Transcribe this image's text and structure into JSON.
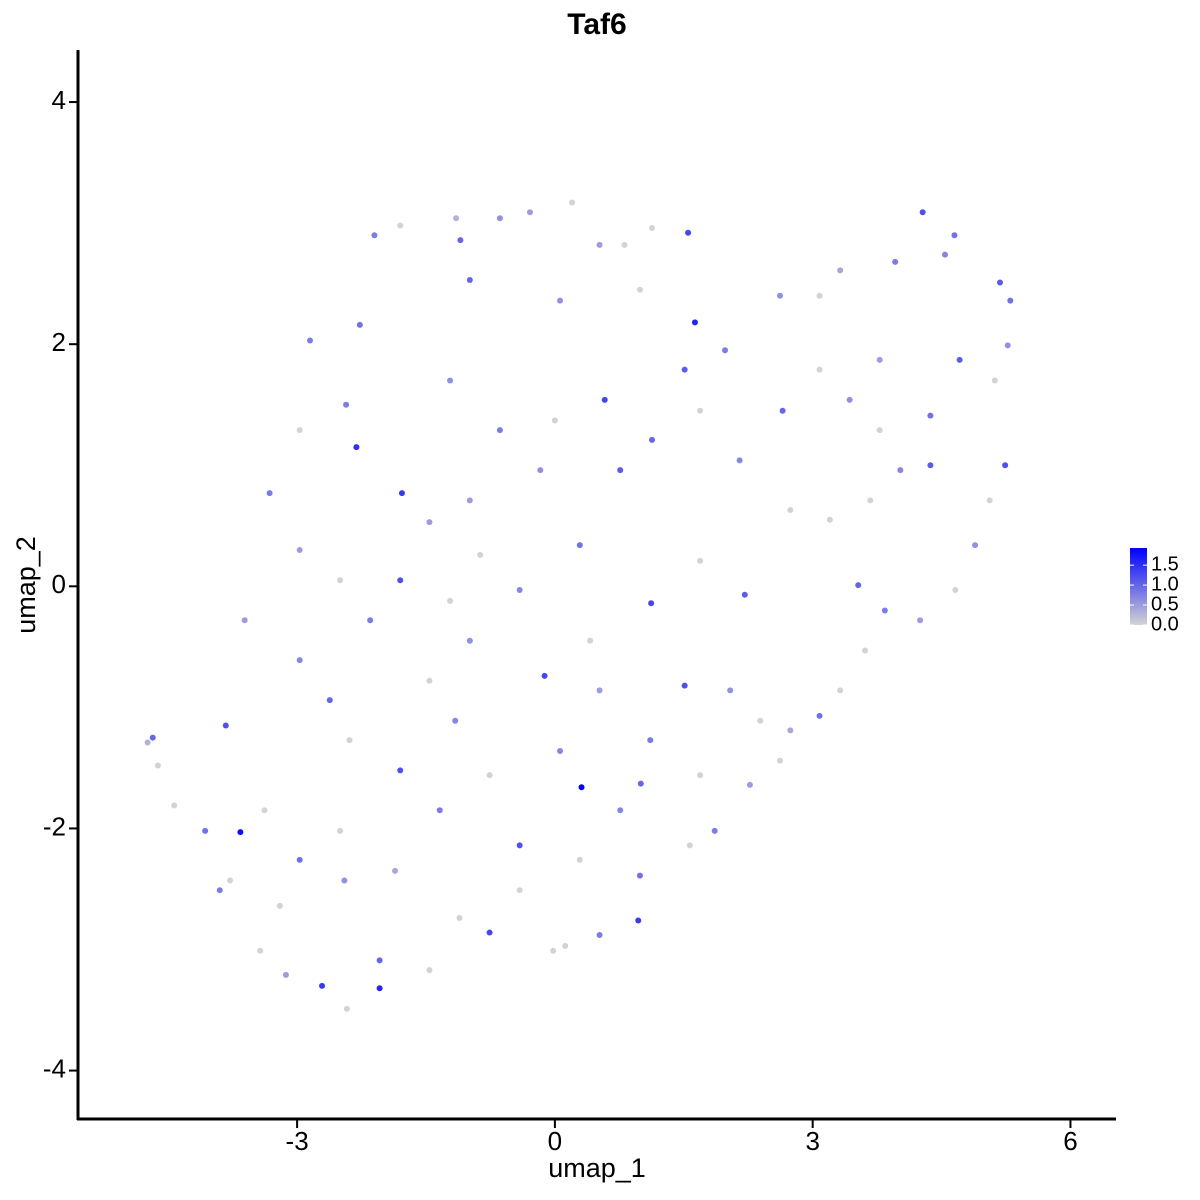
{
  "chart_data": {
    "type": "scatter",
    "title": "Taf6",
    "x_label": "umap_1",
    "y_label": "umap_2",
    "xlim": [
      -5.55,
      6.53
    ],
    "ylim": [
      -4.4,
      4.43
    ],
    "xticks": [
      -3,
      0,
      3,
      6
    ],
    "yticks": [
      -4,
      -2,
      0,
      2,
      4
    ],
    "color_low": "#d3d3d3",
    "color_high": "#0000ff",
    "colorlim": [
      0,
      1.93
    ],
    "colorticks": [
      {
        "value": 0,
        "label": "0.0"
      },
      {
        "value": 0.5,
        "label": "0.5"
      },
      {
        "value": 1,
        "label": "1.0"
      },
      {
        "value": 1.5,
        "label": "1.5"
      }
    ],
    "x": [
      -4.74,
      -4.68,
      -4.62,
      -4.43,
      -3.83,
      -3.66,
      -4.07,
      -3.9,
      -3.43,
      -3.13,
      -2.71,
      -2.42,
      -2.04,
      -2.04,
      -3.61,
      -3.32,
      -2.97,
      -2.85,
      -2.27,
      -2.1,
      -1.8,
      -1.15,
      -0.64,
      -0.29,
      0.2,
      0.52,
      0.81,
      1.13,
      1.55,
      1.63,
      0.58,
      1.98,
      2.62,
      3.08,
      3.32,
      3.96,
      4.28,
      4.54,
      4.65,
      5.18,
      5.3,
      5.27,
      5.12,
      5.24,
      4.89,
      4.66,
      4.25,
      3.84,
      3.61,
      3.32,
      3.08,
      2.74,
      2.62,
      2.27,
      1.86,
      1.57,
      0.99,
      0.97,
      0.52,
      0.12,
      -0.02,
      -0.76,
      -1.11,
      -1.46,
      0.31,
      1.0,
      -0.12,
      -0.17,
      -1.78,
      -2.31,
      -2.43,
      -1.46,
      -0.87,
      -0.41,
      0.29,
      1.12,
      1.69,
      2.21,
      2.74,
      3.2,
      3.53,
      3.67,
      4.02,
      4.37,
      3.78,
      3.43,
      3.78,
      4.37,
      4.71,
      2.65,
      2.15,
      1.69,
      1.13,
      0.76,
      0,
      -0.64,
      -1.22,
      -0.99,
      0.06,
      0.99,
      0.52,
      1.51,
      1.11,
      0.06,
      -0.76,
      -1.34,
      -1.8,
      -2.39,
      -2.62,
      -2.97,
      -2.15,
      -2.5,
      -2.97,
      -3.38,
      -2.97,
      -2.45,
      -1.86,
      -2.5,
      -3.2,
      -3.78,
      -0.41,
      -0.41,
      0.29,
      0.76,
      1.69,
      2.39,
      2.04,
      0.41,
      -0.99,
      -1.46,
      -1.16,
      -1.8,
      -1.22,
      -0.99,
      5.06,
      3.08,
      1.51,
      -1.1
    ],
    "values": [
      -1.29,
      -1.25,
      -1.48,
      -1.81,
      -1.15,
      -2.03,
      -2.02,
      -2.51,
      -3.01,
      -3.21,
      -3.3,
      -3.49,
      -3.32,
      -3.09,
      -0.28,
      0.77,
      1.29,
      2.03,
      2.16,
      2.9,
      2.98,
      3.04,
      3.04,
      3.09,
      3.17,
      2.82,
      2.82,
      2.96,
      2.92,
      2.18,
      1.54,
      1.95,
      2.4,
      2.4,
      2.61,
      2.68,
      3.09,
      2.74,
      2.9,
      2.51,
      2.36,
      1.99,
      1.7,
      1.0,
      0.34,
      -0.03,
      -0.28,
      -0.2,
      -0.53,
      -0.86,
      -1.07,
      -1.19,
      -1.44,
      -1.64,
      -2.02,
      -2.14,
      -2.39,
      -2.76,
      -2.88,
      -2.97,
      -3.01,
      -2.86,
      -2.74,
      -3.17,
      -1.66,
      -1.63,
      -0.74,
      0.96,
      0.77,
      1.15,
      1.5,
      0.53,
      0.26,
      -0.03,
      0.34,
      -0.14,
      0.21,
      -0.07,
      0.63,
      0.55,
      0.01,
      0.71,
      0.96,
      1.0,
      1.29,
      1.54,
      1.87,
      1.41,
      1.87,
      1.45,
      1.04,
      1.45,
      1.21,
      0.96,
      1.37,
      1.29,
      1.7,
      2.53,
      2.36,
      2.45,
      -0.86,
      -0.82,
      -1.27,
      -1.36,
      -1.56,
      -1.85,
      -1.52,
      -1.27,
      -0.94,
      -0.61,
      -0.28,
      0.05,
      0.3,
      -1.85,
      -2.26,
      -2.43,
      -2.35,
      -2.02,
      -2.64,
      -2.43,
      -2.14,
      -2.51,
      -2.26,
      -1.85,
      -1.56,
      -1.11,
      -0.86,
      -0.45,
      -0.45,
      -0.78,
      -1.11,
      0.05,
      -0.12,
      0.71,
      0.71,
      1.79,
      1.79,
      2.86
    ],
    "expression": [
      0.3,
      1.0,
      0,
      0,
      1.2,
      1.8,
      0.9,
      0.8,
      0,
      0.5,
      1.4,
      0,
      1.6,
      1.0,
      0.5,
      0.8,
      0,
      0.8,
      0.9,
      0.8,
      0,
      0.3,
      0.6,
      0.5,
      0,
      0.5,
      0,
      0,
      1.3,
      1.6,
      1.3,
      0.8,
      0.6,
      0,
      0.4,
      0.8,
      1.2,
      0.7,
      0.9,
      1.1,
      0.9,
      0.6,
      0,
      1.2,
      0.6,
      0,
      0.5,
      0.8,
      0,
      0,
      0.9,
      0.4,
      0,
      0.5,
      0.8,
      0,
      0.9,
      1.4,
      0.8,
      0,
      0,
      1.3,
      0,
      0,
      1.9,
      1.0,
      1.3,
      0.6,
      1.4,
      1.5,
      0.8,
      0.5,
      0,
      0.7,
      0.9,
      1.3,
      0,
      1.1,
      0,
      0,
      1.0,
      0,
      0.7,
      1.1,
      0,
      0.6,
      0.5,
      0.9,
      1.1,
      1.0,
      0.7,
      0,
      1.0,
      1.1,
      0,
      0.8,
      0.6,
      1.0,
      0.6,
      0,
      0.5,
      1.2,
      0.8,
      0.7,
      0,
      0.8,
      1.2,
      0,
      1.0,
      0.7,
      0.8,
      0,
      0.5,
      0,
      0.9,
      0.6,
      0.4,
      0,
      0,
      0,
      1.2,
      0,
      0,
      0.7,
      0,
      0,
      0.6,
      0,
      0.6,
      0,
      0.7,
      1.2,
      0,
      0.5,
      0,
      0,
      1.1,
      1.0
    ]
  }
}
